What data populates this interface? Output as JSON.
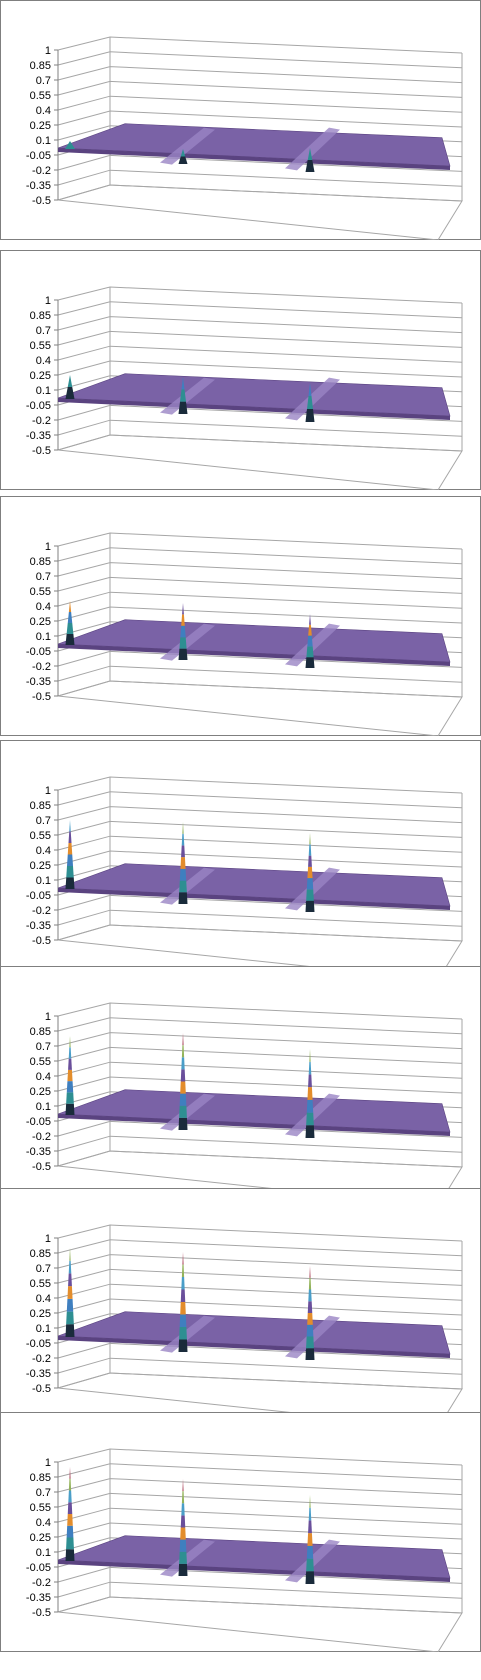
{
  "chart_data": [
    {
      "type": "surface",
      "frame": 1,
      "ylim": [
        -0.5,
        1
      ],
      "y_ticks": [
        "1",
        "0.85",
        "0.7",
        "0.55",
        "0.4",
        "0.25",
        "0.1",
        "-0.05",
        "-0.2",
        "-0.35",
        "-0.5"
      ],
      "plane_value": 0.0,
      "peaks": [
        {
          "position": "left",
          "value": -0.08
        },
        {
          "position": "middle",
          "value": 0.03
        },
        {
          "position": "right",
          "value": 0.1
        }
      ],
      "grid": true
    },
    {
      "type": "surface",
      "frame": 2,
      "ylim": [
        -0.5,
        1
      ],
      "y_ticks": [
        "1",
        "0.85",
        "0.7",
        "0.55",
        "0.4",
        "0.25",
        "0.1",
        "-0.05",
        "-0.2",
        "-0.35",
        "-0.5"
      ],
      "plane_value": 0.0,
      "peaks": [
        {
          "position": "left",
          "value": 0.25
        },
        {
          "position": "middle",
          "value": 0.25
        },
        {
          "position": "right",
          "value": 0.25
        }
      ],
      "grid": true
    },
    {
      "type": "surface",
      "frame": 3,
      "ylim": [
        -0.5,
        1
      ],
      "y_ticks": [
        "1",
        "0.85",
        "0.7",
        "0.55",
        "0.4",
        "0.25",
        "0.1",
        "-0.05",
        "-0.2",
        "-0.35",
        "-0.5"
      ],
      "plane_value": 0.0,
      "peaks": [
        {
          "position": "left",
          "value": 0.45
        },
        {
          "position": "middle",
          "value": 0.45
        },
        {
          "position": "right",
          "value": 0.4
        }
      ],
      "grid": true
    },
    {
      "type": "surface",
      "frame": 4,
      "ylim": [
        -0.5,
        1
      ],
      "y_ticks": [
        "1",
        "0.85",
        "0.7",
        "0.55",
        "0.4",
        "0.25",
        "0.1",
        "-0.05",
        "-0.2",
        "-0.35",
        "-0.5"
      ],
      "plane_value": 0.0,
      "peaks": [
        {
          "position": "left",
          "value": 0.7
        },
        {
          "position": "middle",
          "value": 0.7
        },
        {
          "position": "right",
          "value": 0.65
        }
      ],
      "grid": true
    },
    {
      "type": "surface",
      "frame": 5,
      "ylim": [
        -0.5,
        1
      ],
      "y_ticks": [
        "1",
        "0.85",
        "0.7",
        "0.55",
        "0.4",
        "0.25",
        "0.1",
        "-0.05",
        "-0.2",
        "-0.35",
        "-0.5"
      ],
      "plane_value": 0.0,
      "peaks": [
        {
          "position": "left",
          "value": 0.8
        },
        {
          "position": "middle",
          "value": 0.85
        },
        {
          "position": "right",
          "value": 0.75
        }
      ],
      "grid": true
    },
    {
      "type": "surface",
      "frame": 6,
      "ylim": [
        -0.5,
        1
      ],
      "y_ticks": [
        "1",
        "0.85",
        "0.7",
        "0.55",
        "0.4",
        "0.25",
        "0.1",
        "-0.05",
        "-0.2",
        "-0.35",
        "-0.5"
      ],
      "plane_value": 0.0,
      "peaks": [
        {
          "position": "left",
          "value": 0.9
        },
        {
          "position": "middle",
          "value": 0.88
        },
        {
          "position": "right",
          "value": 0.8
        }
      ],
      "grid": true
    },
    {
      "type": "surface",
      "frame": 7,
      "ylim": [
        -0.5,
        1
      ],
      "y_ticks": [
        "1",
        "0.85",
        "0.7",
        "0.55",
        "0.4",
        "0.25",
        "0.1",
        "-0.05",
        "-0.2",
        "-0.35",
        "-0.5"
      ],
      "plane_value": 0.0,
      "peaks": [
        {
          "position": "left",
          "value": 0.95
        },
        {
          "position": "middle",
          "value": 0.85
        },
        {
          "position": "right",
          "value": 0.75
        }
      ],
      "grid": true
    }
  ],
  "colors": {
    "plane_top": "#7a62a6",
    "plane_front": "#5a4380",
    "plane_light": "#9a85c4",
    "grid": "#a6a6a6",
    "axis": "#808080",
    "border": "#7f7f7f",
    "bands": [
      "#1a2b3b",
      "#2e8f92",
      "#3f7fbf",
      "#e38d2c",
      "#6a4f9b",
      "#4a9ec8",
      "#93b35a",
      "#a83f55",
      "#4b7fa3"
    ]
  }
}
